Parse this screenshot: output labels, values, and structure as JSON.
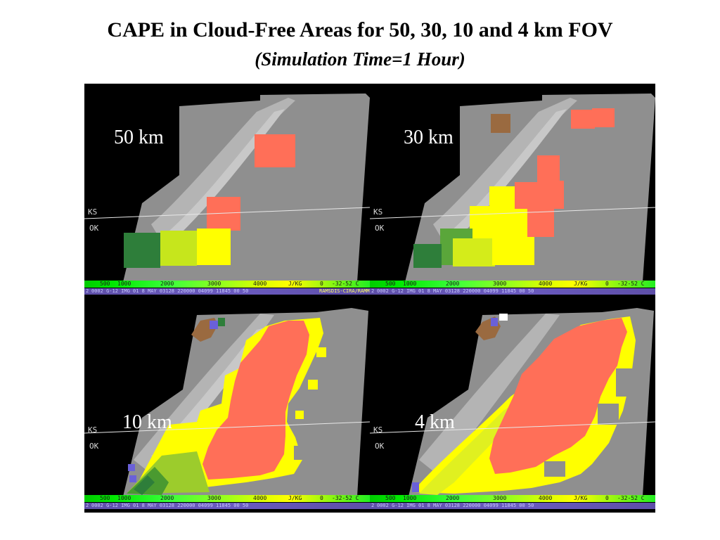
{
  "title": "CAPE in Cloud-Free Areas for 50, 30, 10 and 4 km FOV",
  "subtitle": "(Simulation Time=1 Hour)",
  "panels": [
    {
      "fov_label": "50 km",
      "state_north": "KS",
      "state_south": "OK"
    },
    {
      "fov_label": "30 km",
      "state_north": "KS",
      "state_south": "OK"
    },
    {
      "fov_label": "10 km",
      "state_north": "KS",
      "state_south": "OK"
    },
    {
      "fov_label": "4 km",
      "state_north": "KS",
      "state_south": "OK"
    }
  ],
  "colorbar": {
    "ticks": [
      "500",
      "1000",
      "2000",
      "3000",
      "4000",
      "J/KG",
      "0",
      "-32-52 C"
    ],
    "info_prefix": "2",
    "info_text": "0002 G-12 IMG 01 8 MAY 03128 220000 04099 11845 00 50",
    "info_credit": "RAMSDIS-CIRA/RAMM"
  },
  "colors": {
    "cape_salmon": "#ff6f58",
    "cape_yellow": "#ffff00",
    "cape_yellow_green": "#d4ec1a",
    "cape_green": "#4a9a30",
    "cape_dark_green": "#2e7e3a",
    "cloud_gray": "#8f8f8f",
    "cloud_light": "#b4b4b4"
  }
}
